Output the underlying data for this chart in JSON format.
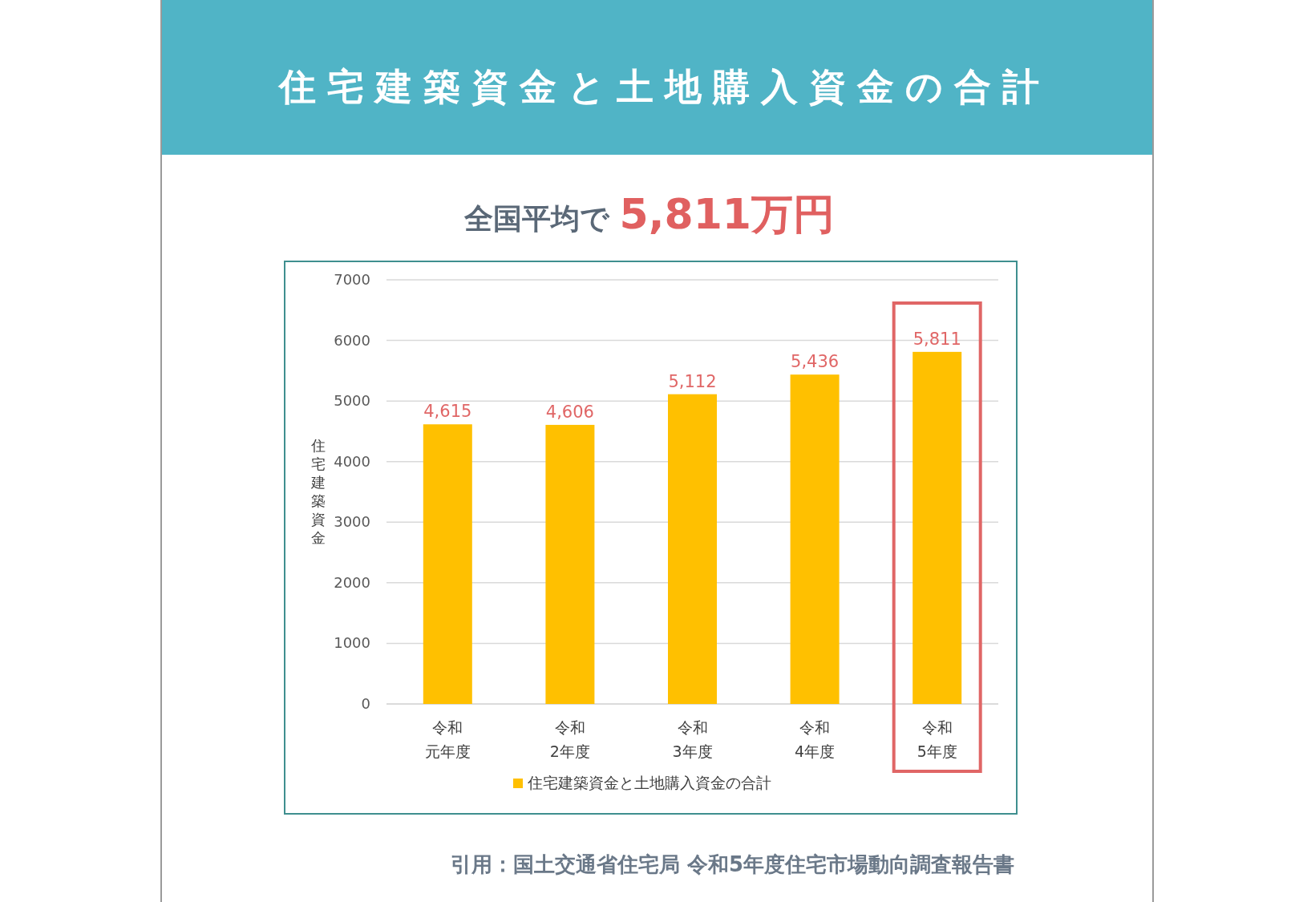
{
  "chart_data": {
    "type": "bar",
    "title": "住宅建築資金と土地購入資金の合計",
    "subtitle": "全国平均で 5,811万円",
    "ylabel": "住宅建築資金",
    "categories": [
      "令和元年度",
      "令和2年度",
      "令和3年度",
      "令和4年度",
      "令和5年度"
    ],
    "series": [
      {
        "name": "住宅建築資金と土地購入資金の合計",
        "color": "#ffc000",
        "values": [
          4615,
          4606,
          5112,
          5436,
          5811
        ],
        "value_labels": [
          "4,615",
          "4,606",
          "5,112",
          "5,436",
          "5,811"
        ]
      }
    ],
    "ylim": [
      0,
      7000
    ],
    "yticks": [
      0,
      1000,
      2000,
      3000,
      4000,
      5000,
      6000,
      7000
    ],
    "grid": "y",
    "legend": "bottom",
    "annotations": [
      "引用：国土交通省住宅局 令和5年度住宅市場動向調査報告書"
    ]
  }
}
